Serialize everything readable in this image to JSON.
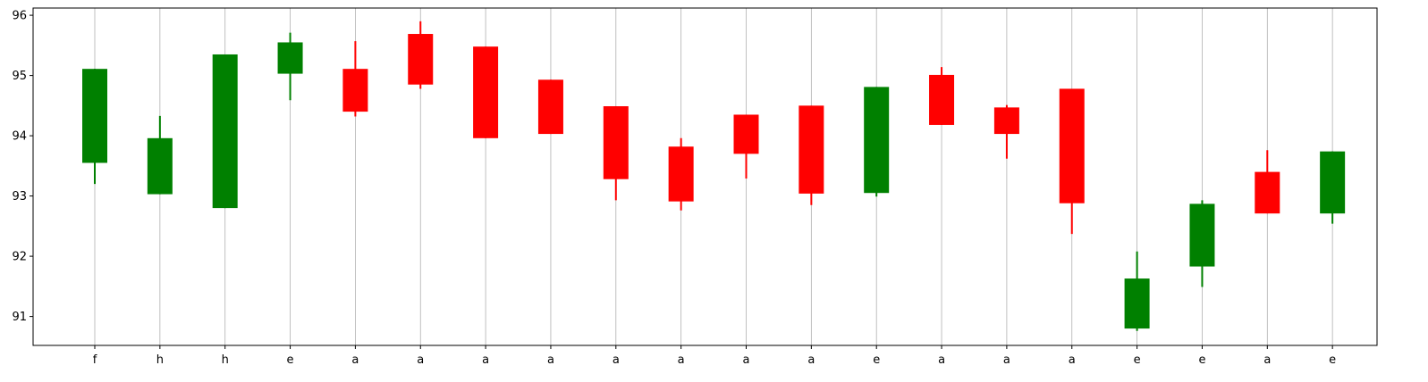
{
  "chart_data": {
    "type": "candlestick",
    "title": "",
    "xlabel": "",
    "ylabel": "",
    "categories": [
      "f",
      "h",
      "h",
      "e",
      "a",
      "a",
      "a",
      "a",
      "a",
      "a",
      "a",
      "a",
      "e",
      "a",
      "a",
      "a",
      "e",
      "e",
      "a",
      "e"
    ],
    "open": [
      93.55,
      93.03,
      92.8,
      95.03,
      95.11,
      95.69,
      95.48,
      94.93,
      94.49,
      93.82,
      94.35,
      94.5,
      93.05,
      95.01,
      94.47,
      94.78,
      90.8,
      91.83,
      93.4,
      92.71
    ],
    "close": [
      95.11,
      93.96,
      95.35,
      95.55,
      94.4,
      94.85,
      93.96,
      94.03,
      93.28,
      92.91,
      93.7,
      93.04,
      94.81,
      94.18,
      94.03,
      92.88,
      91.63,
      92.87,
      92.71,
      93.74
    ],
    "high": [
      95.11,
      94.33,
      95.35,
      95.71,
      95.57,
      95.9,
      95.48,
      94.93,
      94.49,
      93.96,
      94.35,
      94.5,
      94.81,
      95.14,
      94.51,
      94.78,
      92.08,
      92.93,
      93.76,
      93.74
    ],
    "low": [
      93.2,
      93.03,
      92.8,
      94.59,
      94.32,
      94.78,
      93.96,
      94.03,
      92.93,
      92.76,
      93.29,
      92.85,
      92.99,
      94.18,
      93.62,
      92.37,
      90.76,
      91.49,
      92.71,
      92.54
    ],
    "ylim": [
      90.52,
      96.12
    ],
    "yticks": [
      91,
      92,
      93,
      94,
      95,
      96
    ],
    "grid": "x",
    "legend": "none",
    "colors": {
      "up": "#008000",
      "down": "#ff0000",
      "grid": "#b0b0b0",
      "axis": "#000000"
    }
  }
}
